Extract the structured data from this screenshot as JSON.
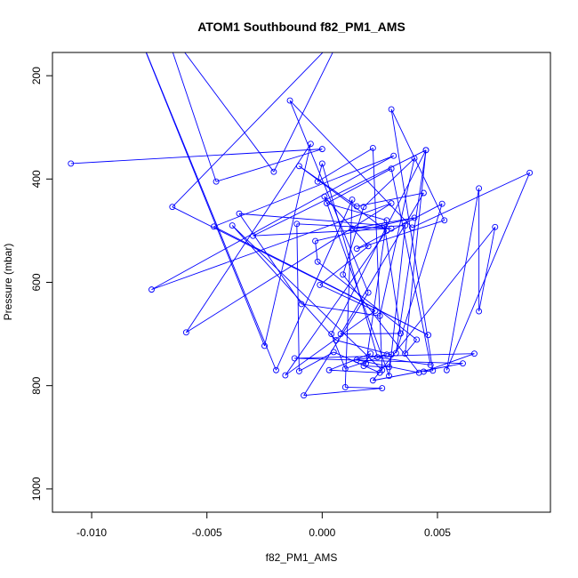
{
  "chart_data": {
    "type": "line",
    "title": "ATOM1 Southbound f82_PM1_AMS",
    "xlabel": "f82_PM1_AMS",
    "ylabel": "Pressure (mbar)",
    "xlim": [
      -0.0117,
      0.0099
    ],
    "ylim": [
      1045,
      155
    ],
    "y_reversed": true,
    "x_ticks": [
      -0.01,
      -0.005,
      0.0,
      0.005
    ],
    "x_tick_labels": [
      "-0.010",
      "-0.005",
      "0.000",
      "0.005"
    ],
    "y_ticks": [
      200,
      400,
      600,
      800,
      1000
    ],
    "y_tick_labels": [
      "200",
      "400",
      "600",
      "800",
      "1000"
    ],
    "grid": false,
    "legend": "none",
    "colors": {
      "series": "#0000ff",
      "frame": "#000000"
    },
    "series": [
      {
        "marker": "open-circle",
        "points": [
          {
            "x": -0.0109,
            "y": 370
          },
          {
            "x": 0.0,
            "y": 342
          },
          {
            "x": -0.0046,
            "y": 405
          },
          {
            "x": -0.0069,
            "y": 99
          },
          {
            "x": -0.0021,
            "y": 386
          },
          {
            "x": 0.0009,
            "y": 115
          },
          {
            "x": -0.0065,
            "y": 454
          },
          {
            "x": 0.0046,
            "y": 702
          },
          {
            "x": -0.0047,
            "y": 492
          },
          {
            "x": 0.0031,
            "y": 355
          },
          {
            "x": -0.0074,
            "y": 614
          },
          {
            "x": 0.003,
            "y": 447
          },
          {
            "x": -0.0059,
            "y": 697
          },
          {
            "x": -0.0005,
            "y": 332
          },
          {
            "x": -0.0025,
            "y": 723
          },
          {
            "x": -0.0085,
            "y": 60
          },
          {
            "x": -0.002,
            "y": 770
          },
          {
            "x": 0.0013,
            "y": 440
          },
          {
            "x": 0.001,
            "y": 803
          },
          {
            "x": 0.0026,
            "y": 805
          },
          {
            "x": -0.0008,
            "y": 819
          },
          {
            "x": 0.002,
            "y": 620
          },
          {
            "x": -0.0014,
            "y": 248
          },
          {
            "x": 0.0039,
            "y": 494
          },
          {
            "x": 0.009,
            "y": 388
          },
          {
            "x": 0.0054,
            "y": 770
          },
          {
            "x": 0.0068,
            "y": 418
          },
          {
            "x": 0.0068,
            "y": 656
          },
          {
            "x": 0.0075,
            "y": 493
          },
          {
            "x": 0.0022,
            "y": 790
          },
          {
            "x": 0.0061,
            "y": 757
          },
          {
            "x": -0.0012,
            "y": 747
          },
          {
            "x": 0.0066,
            "y": 738
          },
          {
            "x": 0.0044,
            "y": 773
          },
          {
            "x": 0.0048,
            "y": 771
          },
          {
            "x": 0.003,
            "y": 265
          },
          {
            "x": 0.0053,
            "y": 480
          },
          {
            "x": 0.0015,
            "y": 535
          },
          {
            "x": 0.0052,
            "y": 448
          },
          {
            "x": 0.0032,
            "y": 737
          },
          {
            "x": 0.0045,
            "y": 344
          },
          {
            "x": 0.0036,
            "y": 738
          },
          {
            "x": 0.0041,
            "y": 711
          },
          {
            "x": -0.0002,
            "y": 560
          },
          {
            "x": -0.0003,
            "y": 520
          },
          {
            "x": 0.004,
            "y": 475
          },
          {
            "x": 0.0013,
            "y": 496
          },
          {
            "x": 0.0036,
            "y": 490
          },
          {
            "x": 0.0029,
            "y": 781
          },
          {
            "x": 0.0001,
            "y": 434
          },
          {
            "x": 0.002,
            "y": 530
          },
          {
            "x": -0.0001,
            "y": 605
          },
          {
            "x": 0.0023,
            "y": 655
          },
          {
            "x": -0.0016,
            "y": 780
          },
          {
            "x": 0.0028,
            "y": 500
          },
          {
            "x": -0.001,
            "y": 375
          },
          {
            "x": 0.0015,
            "y": 453
          },
          {
            "x": 0.0044,
            "y": 427
          },
          {
            "x": 0.0008,
            "y": 700
          },
          {
            "x": 0.0034,
            "y": 699
          },
          {
            "x": 0.0027,
            "y": 490
          },
          {
            "x": -0.0036,
            "y": 467
          },
          {
            "x": -0.0009,
            "y": 642
          },
          {
            "x": 0.0025,
            "y": 665
          },
          {
            "x": 0.004,
            "y": 360
          },
          {
            "x": 0.0018,
            "y": 454
          },
          {
            "x": 0.0009,
            "y": 585
          },
          {
            "x": 0.0042,
            "y": 775
          },
          {
            "x": 0.0015,
            "y": 750
          },
          {
            "x": 0.0028,
            "y": 740
          },
          {
            "x": 0.001,
            "y": 767
          },
          {
            "x": 0.0004,
            "y": 700
          },
          {
            "x": 0.0045,
            "y": 344
          },
          {
            "x": -0.003,
            "y": 510
          },
          {
            "x": 0.003,
            "y": 496
          },
          {
            "x": -0.0011,
            "y": 487
          },
          {
            "x": -0.001,
            "y": 772
          },
          {
            "x": 0.0005,
            "y": 735
          },
          {
            "x": 0.0025,
            "y": 775
          },
          {
            "x": 0.0003,
            "y": 770
          },
          {
            "x": 0.0021,
            "y": 738
          },
          {
            "x": 0.0018,
            "y": 762
          },
          {
            "x": 0.0029,
            "y": 764
          },
          {
            "x": 0.003,
            "y": 740
          },
          {
            "x": 0.0006,
            "y": 712
          },
          {
            "x": -0.0039,
            "y": 490
          },
          {
            "x": 0.0026,
            "y": 770
          },
          {
            "x": 0.0022,
            "y": 340
          },
          {
            "x": -0.0002,
            "y": 405
          },
          {
            "x": 0.0,
            "y": 370
          },
          {
            "x": 0.0024,
            "y": 745
          },
          {
            "x": 0.0047,
            "y": 760
          },
          {
            "x": 0.003,
            "y": 380
          },
          {
            "x": 0.0002,
            "y": 447
          },
          {
            "x": 0.0028,
            "y": 480
          },
          {
            "x": 0.0019,
            "y": 757
          }
        ]
      }
    ]
  }
}
